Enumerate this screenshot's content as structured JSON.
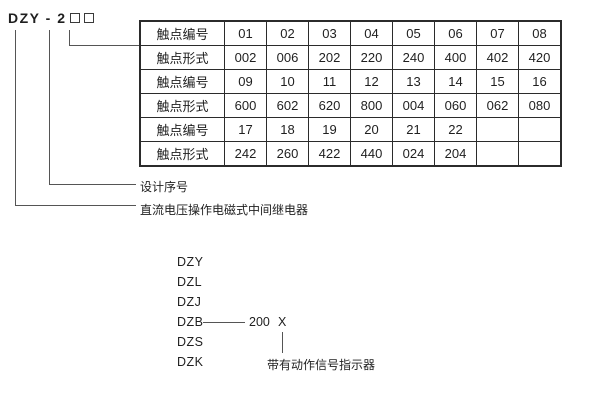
{
  "model_code": {
    "text": "DZY - 2",
    "placeholder_boxes": 2
  },
  "table": {
    "rows": [
      {
        "label": "触点编号",
        "values": [
          "01",
          "02",
          "03",
          "04",
          "05",
          "06",
          "07",
          "08"
        ]
      },
      {
        "label": "触点形式",
        "values": [
          "002",
          "006",
          "202",
          "220",
          "240",
          "400",
          "402",
          "420"
        ]
      },
      {
        "label": "触点编号",
        "values": [
          "09",
          "10",
          "11",
          "12",
          "13",
          "14",
          "15",
          "16"
        ]
      },
      {
        "label": "触点形式",
        "values": [
          "600",
          "602",
          "620",
          "800",
          "004",
          "060",
          "062",
          "080"
        ]
      },
      {
        "label": "触点编号",
        "values": [
          "17",
          "18",
          "19",
          "20",
          "21",
          "22",
          "",
          ""
        ]
      },
      {
        "label": "触点形式",
        "values": [
          "242",
          "260",
          "422",
          "440",
          "024",
          "204",
          "",
          ""
        ]
      }
    ]
  },
  "annotations": {
    "design_serial": "设计序号",
    "relay_description": "直流电压操作电磁式中间继电器"
  },
  "model_list": {
    "items": [
      "DZY",
      "DZL",
      "DZJ",
      "DZB",
      "DZS",
      "DZK"
    ],
    "dzb_value": "200",
    "dzb_x": "X",
    "indicator_note": "带有动作信号指示器"
  },
  "colors": {
    "text": "#1f1f1f",
    "connector_line": "#555555",
    "table_border": "#2b2b2b",
    "background": "#ffffff"
  }
}
